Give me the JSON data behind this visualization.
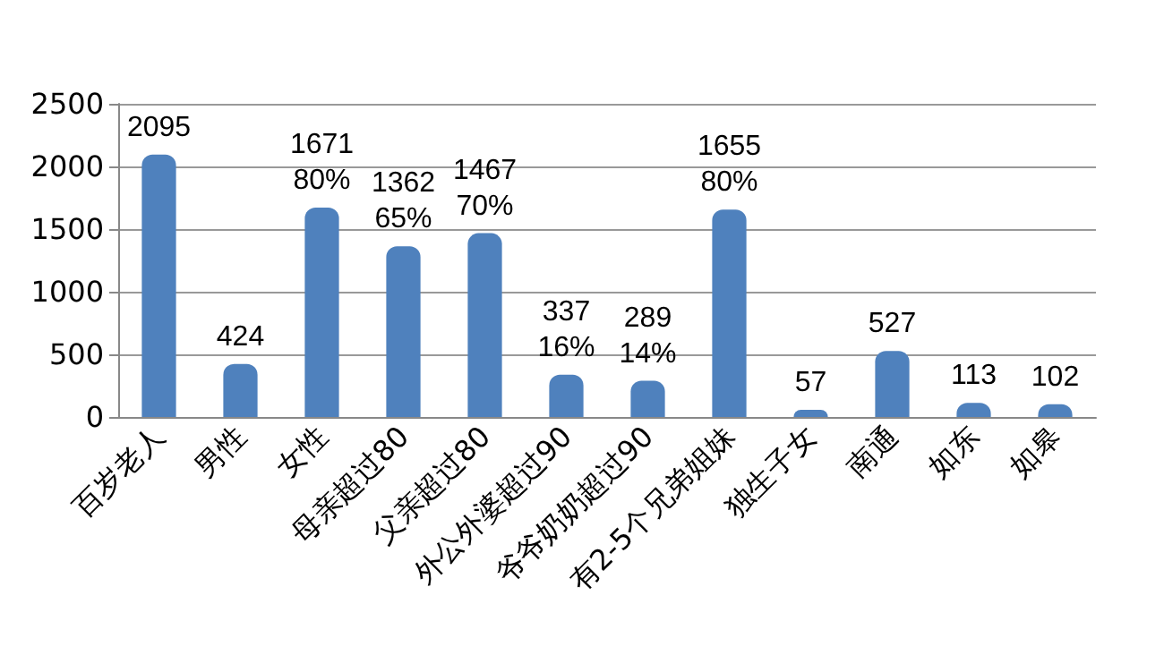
{
  "chart_data": {
    "type": "bar",
    "categories": [
      "百岁老人",
      "男性",
      "女性",
      "母亲超过80",
      "父亲超过80",
      "外公外婆超过90",
      "爷爷奶奶超过90",
      "有2-5个兄弟姐妹",
      "独生子女",
      "南通",
      "如东",
      "如皋"
    ],
    "values": [
      2095,
      424,
      1671,
      1362,
      1467,
      337,
      289,
      1655,
      57,
      527,
      113,
      102
    ],
    "value_labels": [
      "2095",
      "424",
      "1671\n80%",
      "1362\n65%",
      "1467\n70%",
      "337\n16%",
      "289\n14%",
      "1655\n80%",
      "57",
      "527",
      "113",
      "102"
    ],
    "color": "#4f81bd",
    "ylim": [
      0,
      2500
    ],
    "yticks": [
      0,
      500,
      1000,
      1500,
      2000,
      2500
    ],
    "grid": "y"
  }
}
